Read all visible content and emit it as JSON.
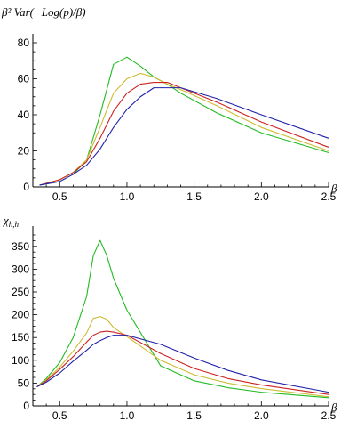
{
  "chart_data": [
    {
      "type": "line",
      "ylabel": "β² Var(−Log(p)/β)",
      "xlabel": "β",
      "xlim": [
        0.3,
        2.5
      ],
      "ylim": [
        0,
        80
      ],
      "xticks": [
        0.5,
        1.0,
        1.5,
        2.0,
        2.5
      ],
      "yticks": [
        0,
        20,
        40,
        60,
        80
      ],
      "xtick_labels": [
        "0.5",
        "1.0",
        "1.5",
        "2.0",
        "2.5"
      ],
      "ytick_labels": [
        "0",
        "20",
        "40",
        "60",
        "80"
      ],
      "grid": false,
      "series": [
        {
          "color": "#22bb22",
          "x": [
            0.35,
            0.5,
            0.6,
            0.7,
            0.8,
            0.9,
            1.0,
            1.1,
            1.2,
            1.3,
            1.4,
            1.67,
            2.0,
            2.5
          ],
          "y": [
            1,
            3,
            7,
            15,
            40,
            68,
            72,
            67,
            61,
            57,
            52,
            41,
            30,
            19
          ]
        },
        {
          "color": "#ccbb33",
          "x": [
            0.35,
            0.5,
            0.6,
            0.7,
            0.8,
            0.9,
            1.0,
            1.1,
            1.2,
            1.3,
            1.4,
            1.67,
            2.0,
            2.5
          ],
          "y": [
            1,
            4,
            8,
            15,
            33,
            52,
            60,
            63,
            61,
            57,
            54,
            45,
            33,
            20
          ]
        },
        {
          "color": "#cc2222",
          "x": [
            0.35,
            0.5,
            0.6,
            0.7,
            0.8,
            0.9,
            1.0,
            1.1,
            1.2,
            1.3,
            1.4,
            1.67,
            2.0,
            2.5
          ],
          "y": [
            1,
            4,
            8,
            14,
            27,
            42,
            52,
            57,
            58,
            58,
            55,
            47,
            36,
            22
          ]
        },
        {
          "color": "#2222aa",
          "x": [
            0.35,
            0.5,
            0.6,
            0.7,
            0.8,
            0.9,
            1.0,
            1.1,
            1.2,
            1.3,
            1.4,
            1.67,
            2.0,
            2.5
          ],
          "y": [
            1,
            3,
            7,
            12,
            21,
            33,
            43,
            50,
            55,
            55,
            55,
            49,
            40,
            27
          ]
        }
      ]
    },
    {
      "type": "line",
      "ylabel": "χh,h",
      "ylabel_main": "χ",
      "ylabel_sub": "h,h",
      "xlabel": "β",
      "xlim": [
        0.3,
        2.5
      ],
      "ylim": [
        0,
        375
      ],
      "xticks": [
        0.5,
        1.0,
        1.5,
        2.0,
        2.5
      ],
      "yticks": [
        0,
        50,
        100,
        150,
        200,
        250,
        300,
        350
      ],
      "xtick_labels": [
        "0.5",
        "1.0",
        "1.5",
        "2.0",
        "2.5"
      ],
      "ytick_labels": [
        "0",
        "50",
        "100",
        "150",
        "200",
        "250",
        "300",
        "350"
      ],
      "grid": false,
      "series": [
        {
          "color": "#22bb22",
          "x": [
            0.33,
            0.4,
            0.5,
            0.6,
            0.7,
            0.75,
            0.8,
            0.85,
            0.9,
            1.0,
            1.25,
            1.5,
            1.75,
            2.0,
            2.5
          ],
          "y": [
            42,
            60,
            95,
            150,
            240,
            330,
            363,
            330,
            280,
            210,
            88,
            55,
            40,
            30,
            18
          ]
        },
        {
          "color": "#ccbb33",
          "x": [
            0.33,
            0.4,
            0.5,
            0.6,
            0.7,
            0.75,
            0.8,
            0.85,
            0.9,
            1.0,
            1.25,
            1.5,
            1.75,
            2.0,
            2.5
          ],
          "y": [
            42,
            57,
            85,
            120,
            160,
            192,
            196,
            190,
            172,
            152,
            100,
            68,
            50,
            38,
            20
          ]
        },
        {
          "color": "#cc2222",
          "x": [
            0.33,
            0.4,
            0.5,
            0.6,
            0.7,
            0.75,
            0.8,
            0.85,
            0.9,
            1.0,
            1.25,
            1.5,
            1.75,
            2.0,
            2.5
          ],
          "y": [
            42,
            55,
            80,
            108,
            140,
            155,
            162,
            164,
            162,
            155,
            115,
            82,
            60,
            46,
            25
          ]
        },
        {
          "color": "#2222aa",
          "x": [
            0.33,
            0.4,
            0.5,
            0.6,
            0.7,
            0.75,
            0.8,
            0.85,
            0.9,
            1.0,
            1.25,
            1.5,
            1.75,
            2.0,
            2.5
          ],
          "y": [
            42,
            52,
            72,
            98,
            122,
            135,
            143,
            150,
            155,
            155,
            135,
            105,
            78,
            57,
            30
          ]
        }
      ]
    }
  ]
}
